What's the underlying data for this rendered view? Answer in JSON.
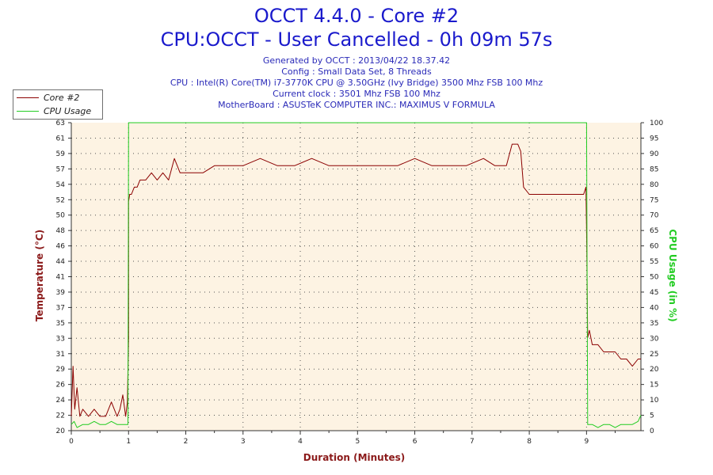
{
  "header": {
    "title_line1": "OCCT 4.4.0 - Core #2",
    "title_line2": "CPU:OCCT - User Cancelled - 0h 09m 57s",
    "info_lines": [
      "Generated by OCCT : 2013/04/22 18.37.42",
      "Config : Small Data Set, 8 Threads",
      "CPU : Intel(R) Core(TM) i7-3770K CPU @ 3.50GHz (Ivy Bridge) 3500 Mhz FSB 100 Mhz",
      "Current clock : 3501 Mhz FSB 100 Mhz",
      "MotherBoard : ASUSTeK COMPUTER INC.: MAXIMUS V FORMULA"
    ]
  },
  "colors": {
    "temperature": "#8b0000",
    "cpu_usage": "#22cc22",
    "plot_background": "#fdf3e3",
    "title": "#1a1acc",
    "axis_label_left": "#8b1a1a",
    "axis_label_right": "#22cc22"
  },
  "chart_data": {
    "type": "line",
    "xlabel": "Duration (Minutes)",
    "ylabel": "Temperature (°C)",
    "y2label": "CPU Usage (in %)",
    "xlim": [
      0,
      9.95
    ],
    "ylim": [
      20,
      63
    ],
    "y2lim": [
      0,
      100
    ],
    "x_ticks": [
      "0",
      "1",
      "2",
      "3",
      "4",
      "5",
      "6",
      "7",
      "8",
      "9"
    ],
    "y_ticks": [
      "20",
      "22",
      "24",
      "26",
      "29",
      "31",
      "33",
      "35",
      "37",
      "39",
      "41",
      "44",
      "46",
      "48",
      "50",
      "52",
      "54",
      "57",
      "59",
      "61",
      "63"
    ],
    "y2_ticks": [
      "0",
      "5",
      "10",
      "15",
      "20",
      "25",
      "30",
      "35",
      "40",
      "45",
      "50",
      "55",
      "60",
      "65",
      "70",
      "75",
      "80",
      "85",
      "90",
      "95",
      "100"
    ],
    "grid": true,
    "legend": "top-left",
    "series": [
      {
        "name": "Core #2",
        "axis": "left",
        "x": [
          0,
          0.03,
          0.06,
          0.1,
          0.15,
          0.2,
          0.3,
          0.4,
          0.5,
          0.6,
          0.7,
          0.8,
          0.85,
          0.9,
          0.95,
          0.98,
          1.0,
          1.0,
          1.02,
          1.05,
          1.1,
          1.15,
          1.2,
          1.3,
          1.4,
          1.5,
          1.6,
          1.7,
          1.8,
          1.9,
          2.0,
          2.1,
          2.3,
          2.5,
          2.7,
          3.0,
          3.3,
          3.6,
          3.9,
          4.2,
          4.5,
          4.8,
          5.1,
          5.4,
          5.7,
          6.0,
          6.3,
          6.6,
          6.9,
          7.2,
          7.4,
          7.55,
          7.6,
          7.7,
          7.8,
          7.85,
          7.9,
          8.0,
          8.2,
          8.4,
          8.6,
          8.8,
          8.95,
          8.99,
          9.0,
          9.02,
          9.05,
          9.1,
          9.2,
          9.3,
          9.4,
          9.5,
          9.6,
          9.7,
          9.8,
          9.9,
          9.95
        ],
        "y": [
          22,
          29,
          23,
          26,
          22,
          23,
          22,
          23,
          22,
          22,
          24,
          22,
          23,
          25,
          22,
          24,
          33,
          52,
          53,
          53,
          54,
          54,
          55,
          55,
          56,
          55,
          56,
          55,
          58,
          56,
          56,
          56,
          56,
          57,
          57,
          57,
          58,
          57,
          57,
          58,
          57,
          57,
          57,
          57,
          57,
          58,
          57,
          57,
          57,
          58,
          57,
          57,
          57,
          60,
          60,
          59,
          54,
          53,
          53,
          53,
          53,
          53,
          53,
          54,
          48,
          33,
          34,
          32,
          32,
          31,
          31,
          31,
          30,
          30,
          29,
          30,
          30
        ]
      },
      {
        "name": "CPU Usage",
        "axis": "right",
        "x": [
          0,
          0.05,
          0.1,
          0.2,
          0.3,
          0.4,
          0.5,
          0.6,
          0.7,
          0.8,
          0.9,
          0.99,
          1.0,
          1.02,
          2.0,
          4.0,
          6.0,
          8.0,
          8.98,
          9.0,
          9.02,
          9.1,
          9.2,
          9.3,
          9.4,
          9.5,
          9.6,
          9.7,
          9.8,
          9.9,
          9.95
        ],
        "y": [
          2,
          3,
          1,
          2,
          2,
          3,
          2,
          2,
          3,
          2,
          2,
          2,
          100,
          100,
          100,
          100,
          100,
          100,
          100,
          100,
          2,
          2,
          1,
          2,
          2,
          1,
          2,
          2,
          2,
          3,
          5
        ]
      }
    ]
  }
}
